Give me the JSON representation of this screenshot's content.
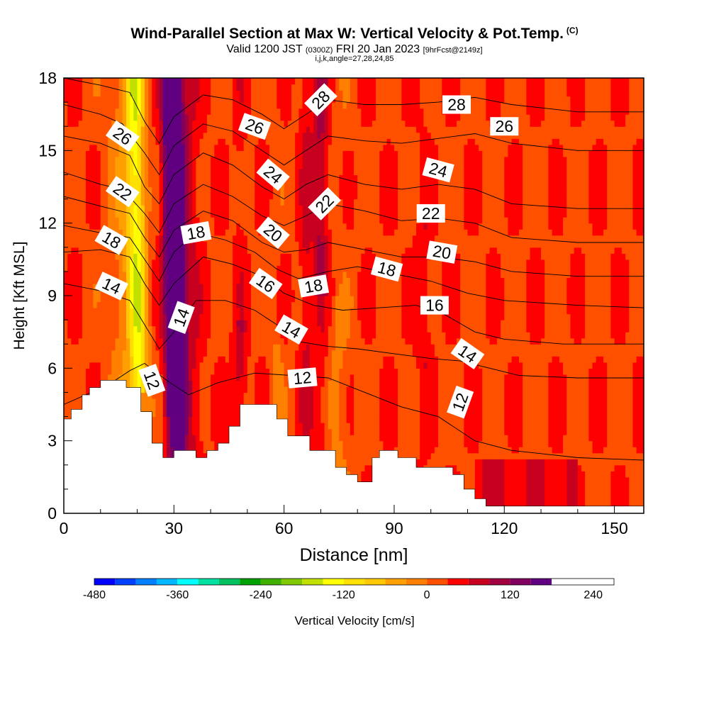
{
  "title": "Wind-Parallel Section at Max W: Vertical Velocity & Pot.Temp.",
  "copyright": "(C)",
  "subtitle_pre": "Valid 1200 JST",
  "subtitle_small1": "(0300Z)",
  "subtitle_mid": "FRI 20 Jan 2023",
  "subtitle_small2": "[9hrFcst@2149z]",
  "subtitle2": "i,j,k,angle=27,28,24,85",
  "chart_data": {
    "type": "heatmap",
    "xlabel": "Distance [nm]",
    "ylabel": "Height [Kft MSL]",
    "xlim": [
      0,
      158
    ],
    "ylim": [
      0,
      18
    ],
    "x_ticks": [
      0,
      30,
      60,
      90,
      120,
      150
    ],
    "y_ticks": [
      0,
      3,
      6,
      9,
      12,
      15,
      18
    ],
    "colorbar": {
      "label": "Vertical Velocity [cm/s]",
      "range": [
        -480,
        270
      ],
      "step": 30,
      "tick_values": [
        -480,
        -360,
        -240,
        -120,
        0,
        120,
        240
      ],
      "colors": [
        "#0000ff",
        "#0040ff",
        "#0080ff",
        "#00b8ff",
        "#00ffff",
        "#00e0a0",
        "#00c060",
        "#00a000",
        "#40b000",
        "#80c800",
        "#c0e000",
        "#ffff00",
        "#ffe000",
        "#ffc800",
        "#ffa000",
        "#ff8000",
        "#ff5000",
        "#ff0000",
        "#c80020",
        "#a00040",
        "#800060",
        "#600080"
      ]
    },
    "terrain": [
      [
        0,
        3.9
      ],
      [
        2,
        3.9
      ],
      [
        2,
        4.3
      ],
      [
        5,
        4.3
      ],
      [
        5,
        4.9
      ],
      [
        7,
        4.9
      ],
      [
        7,
        5.2
      ],
      [
        10,
        5.2
      ],
      [
        10,
        5.5
      ],
      [
        17,
        5.5
      ],
      [
        17,
        5.2
      ],
      [
        21,
        5.2
      ],
      [
        21,
        4.2
      ],
      [
        24,
        4.2
      ],
      [
        24,
        2.9
      ],
      [
        27,
        2.9
      ],
      [
        27,
        2.3
      ],
      [
        30,
        2.3
      ],
      [
        30,
        2.6
      ],
      [
        36,
        2.6
      ],
      [
        36,
        2.3
      ],
      [
        39,
        2.3
      ],
      [
        39,
        2.6
      ],
      [
        42,
        2.6
      ],
      [
        42,
        2.9
      ],
      [
        45,
        2.9
      ],
      [
        45,
        3.6
      ],
      [
        48,
        3.6
      ],
      [
        48,
        4.5
      ],
      [
        58,
        4.5
      ],
      [
        58,
        3.9
      ],
      [
        61,
        3.9
      ],
      [
        61,
        3.2
      ],
      [
        67,
        3.2
      ],
      [
        67,
        2.6
      ],
      [
        74,
        2.6
      ],
      [
        74,
        1.9
      ],
      [
        77,
        1.9
      ],
      [
        77,
        1.6
      ],
      [
        80,
        1.6
      ],
      [
        80,
        1.3
      ],
      [
        84,
        1.3
      ],
      [
        84,
        2.3
      ],
      [
        86,
        2.3
      ],
      [
        86,
        2.6
      ],
      [
        91,
        2.6
      ],
      [
        91,
        2.3
      ],
      [
        96,
        2.3
      ],
      [
        96,
        1.9
      ],
      [
        106,
        1.9
      ],
      [
        106,
        1.6
      ],
      [
        109,
        1.6
      ],
      [
        109,
        1.0
      ],
      [
        112,
        1.0
      ],
      [
        112,
        0.6
      ],
      [
        115,
        0.6
      ],
      [
        115,
        0.3
      ],
      [
        158,
        0.3
      ],
      [
        158,
        0
      ],
      [
        0,
        0
      ]
    ],
    "theta_contours": [
      {
        "label": "12",
        "points": [
          [
            0,
            4.5
          ],
          [
            12,
            5.3
          ],
          [
            18,
            5.9
          ],
          [
            22,
            6.2
          ],
          [
            28,
            5.5
          ],
          [
            34,
            4.9
          ],
          [
            42,
            5.4
          ],
          [
            52,
            5.8
          ],
          [
            62,
            5.7
          ],
          [
            72,
            5.6
          ],
          [
            82,
            5.0
          ],
          [
            92,
            4.4
          ],
          [
            102,
            4.0
          ],
          [
            112,
            3.0
          ],
          [
            122,
            2.6
          ],
          [
            140,
            2.3
          ],
          [
            158,
            2.2
          ]
        ]
      },
      {
        "label": "14",
        "points": [
          [
            0,
            9.5
          ],
          [
            10,
            9.2
          ],
          [
            18,
            8.8
          ],
          [
            22,
            7.8
          ],
          [
            26,
            6.8
          ],
          [
            30,
            7.5
          ],
          [
            36,
            8.8
          ],
          [
            44,
            8.8
          ],
          [
            52,
            8.4
          ],
          [
            58,
            7.8
          ],
          [
            64,
            7.1
          ],
          [
            72,
            6.9
          ],
          [
            80,
            6.8
          ],
          [
            90,
            6.6
          ],
          [
            100,
            6.4
          ],
          [
            108,
            6.3
          ],
          [
            116,
            6.0
          ],
          [
            124,
            5.7
          ],
          [
            140,
            5.6
          ],
          [
            158,
            5.6
          ]
        ]
      },
      {
        "label": "16",
        "points": [
          [
            0,
            10.8
          ],
          [
            10,
            10.9
          ],
          [
            18,
            10.6
          ],
          [
            22,
            9.5
          ],
          [
            26,
            8.6
          ],
          [
            30,
            9.5
          ],
          [
            38,
            10.6
          ],
          [
            46,
            10.3
          ],
          [
            54,
            9.8
          ],
          [
            60,
            9.1
          ],
          [
            68,
            8.6
          ],
          [
            76,
            8.4
          ],
          [
            86,
            8.5
          ],
          [
            96,
            8.6
          ],
          [
            104,
            8.2
          ],
          [
            112,
            7.5
          ],
          [
            120,
            7.2
          ],
          [
            136,
            7.0
          ],
          [
            158,
            7.0
          ]
        ]
      },
      {
        "label": "18",
        "points": [
          [
            0,
            11.9
          ],
          [
            10,
            11.6
          ],
          [
            18,
            11.4
          ],
          [
            22,
            10.5
          ],
          [
            26,
            9.6
          ],
          [
            30,
            10.8
          ],
          [
            36,
            11.6
          ],
          [
            44,
            11.3
          ],
          [
            52,
            10.8
          ],
          [
            58,
            10.1
          ],
          [
            64,
            9.7
          ],
          [
            72,
            10.0
          ],
          [
            80,
            10.2
          ],
          [
            90,
            9.9
          ],
          [
            100,
            9.6
          ],
          [
            110,
            9.1
          ],
          [
            120,
            8.8
          ],
          [
            140,
            8.6
          ],
          [
            158,
            8.5
          ]
        ]
      },
      {
        "label": "20",
        "points": [
          [
            0,
            13.1
          ],
          [
            10,
            12.7
          ],
          [
            18,
            12.4
          ],
          [
            22,
            11.4
          ],
          [
            26,
            10.6
          ],
          [
            30,
            11.7
          ],
          [
            38,
            12.5
          ],
          [
            46,
            12.1
          ],
          [
            54,
            11.2
          ],
          [
            60,
            10.8
          ],
          [
            66,
            10.9
          ],
          [
            72,
            11.2
          ],
          [
            82,
            10.9
          ],
          [
            92,
            10.6
          ],
          [
            102,
            10.6
          ],
          [
            112,
            10.4
          ],
          [
            122,
            10.0
          ],
          [
            140,
            9.8
          ],
          [
            158,
            9.8
          ]
        ]
      },
      {
        "label": "22",
        "points": [
          [
            0,
            14.1
          ],
          [
            10,
            13.6
          ],
          [
            16,
            13.4
          ],
          [
            22,
            12.4
          ],
          [
            26,
            11.6
          ],
          [
            30,
            12.8
          ],
          [
            38,
            13.6
          ],
          [
            46,
            13.1
          ],
          [
            54,
            12.3
          ],
          [
            60,
            11.9
          ],
          [
            66,
            12.3
          ],
          [
            72,
            12.8
          ],
          [
            82,
            12.5
          ],
          [
            92,
            12.1
          ],
          [
            102,
            12.2
          ],
          [
            112,
            12.0
          ],
          [
            122,
            11.4
          ],
          [
            140,
            11.2
          ],
          [
            158,
            11.2
          ]
        ]
      },
      {
        "label": "24",
        "points": [
          [
            0,
            15.6
          ],
          [
            10,
            15.3
          ],
          [
            18,
            14.8
          ],
          [
            22,
            13.5
          ],
          [
            26,
            12.8
          ],
          [
            30,
            14.0
          ],
          [
            38,
            14.9
          ],
          [
            46,
            14.4
          ],
          [
            54,
            13.5
          ],
          [
            60,
            13.0
          ],
          [
            66,
            13.6
          ],
          [
            72,
            14.0
          ],
          [
            82,
            13.6
          ],
          [
            92,
            13.4
          ],
          [
            102,
            13.6
          ],
          [
            112,
            13.4
          ],
          [
            122,
            12.8
          ],
          [
            140,
            12.6
          ],
          [
            158,
            12.6
          ]
        ]
      },
      {
        "label": "26",
        "points": [
          [
            0,
            16.9
          ],
          [
            10,
            16.5
          ],
          [
            16,
            16.1
          ],
          [
            22,
            14.9
          ],
          [
            26,
            14.0
          ],
          [
            30,
            15.2
          ],
          [
            38,
            16.1
          ],
          [
            46,
            15.8
          ],
          [
            54,
            15.0
          ],
          [
            60,
            14.4
          ],
          [
            66,
            15.0
          ],
          [
            72,
            15.6
          ],
          [
            82,
            15.4
          ],
          [
            92,
            15.3
          ],
          [
            102,
            15.5
          ],
          [
            112,
            15.7
          ],
          [
            122,
            15.3
          ],
          [
            140,
            15.0
          ],
          [
            158,
            15.0
          ]
        ]
      },
      {
        "label": "28",
        "points": [
          [
            0,
            18.0
          ],
          [
            10,
            17.7
          ],
          [
            18,
            17.4
          ],
          [
            22,
            16.2
          ],
          [
            26,
            15.3
          ],
          [
            30,
            16.4
          ],
          [
            38,
            17.3
          ],
          [
            46,
            17.1
          ],
          [
            54,
            16.5
          ],
          [
            60,
            15.9
          ],
          [
            66,
            16.5
          ],
          [
            72,
            17.1
          ],
          [
            82,
            16.9
          ],
          [
            92,
            16.9
          ],
          [
            102,
            17.0
          ],
          [
            112,
            17.2
          ],
          [
            122,
            16.9
          ],
          [
            140,
            16.6
          ],
          [
            158,
            16.6
          ]
        ]
      }
    ],
    "theta_labels": [
      {
        "text": "26",
        "x": 16,
        "y": 15.6,
        "rot": 35
      },
      {
        "text": "22",
        "x": 16,
        "y": 13.3,
        "rot": 35
      },
      {
        "text": "18",
        "x": 13,
        "y": 11.3,
        "rot": 30
      },
      {
        "text": "14",
        "x": 13,
        "y": 9.4,
        "rot": 25
      },
      {
        "text": "18",
        "x": 36,
        "y": 11.6,
        "rot": -10
      },
      {
        "text": "14",
        "x": 32,
        "y": 8.1,
        "rot": -70
      },
      {
        "text": "12",
        "x": 24,
        "y": 5.5,
        "rot": 70
      },
      {
        "text": "26",
        "x": 52,
        "y": 16.0,
        "rot": 20
      },
      {
        "text": "24",
        "x": 57,
        "y": 14.0,
        "rot": 40
      },
      {
        "text": "20",
        "x": 57,
        "y": 11.6,
        "rot": 40
      },
      {
        "text": "16",
        "x": 55,
        "y": 9.5,
        "rot": 35
      },
      {
        "text": "14",
        "x": 62,
        "y": 7.6,
        "rot": 30
      },
      {
        "text": "18",
        "x": 68,
        "y": 9.4,
        "rot": -10
      },
      {
        "text": "28",
        "x": 70,
        "y": 17.1,
        "rot": -45
      },
      {
        "text": "22",
        "x": 71,
        "y": 12.8,
        "rot": -45
      },
      {
        "text": "12",
        "x": 65,
        "y": 5.6,
        "rot": -5
      },
      {
        "text": "18",
        "x": 88,
        "y": 10.1,
        "rot": 15
      },
      {
        "text": "28",
        "x": 107,
        "y": 16.9,
        "rot": 0
      },
      {
        "text": "26",
        "x": 120,
        "y": 16.0,
        "rot": 0
      },
      {
        "text": "24",
        "x": 102,
        "y": 14.2,
        "rot": 15
      },
      {
        "text": "22",
        "x": 100,
        "y": 12.4,
        "rot": 0
      },
      {
        "text": "20",
        "x": 103,
        "y": 10.8,
        "rot": 10
      },
      {
        "text": "16",
        "x": 101,
        "y": 8.6,
        "rot": 0
      },
      {
        "text": "14",
        "x": 110,
        "y": 6.6,
        "rot": 35
      },
      {
        "text": "12",
        "x": 108,
        "y": 4.6,
        "rot": -70
      }
    ]
  }
}
